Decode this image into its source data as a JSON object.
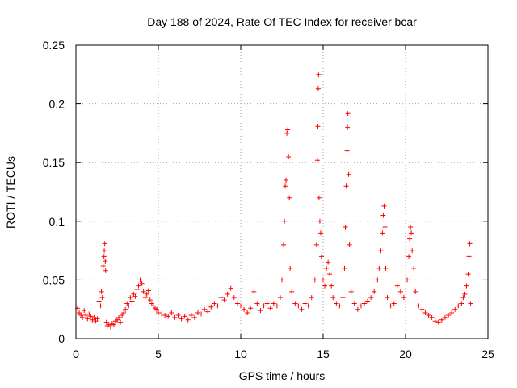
{
  "chart_data": {
    "type": "scatter",
    "title": "Day 188 of 2024, Rate Of TEC Index for receiver bcar",
    "xlabel": "GPS time / hours",
    "ylabel": "ROTI / TECUs",
    "xlim": [
      0,
      25
    ],
    "ylim": [
      0,
      0.25
    ],
    "x_ticks": [
      0,
      5,
      10,
      15,
      20,
      25
    ],
    "x_tick_labels": [
      "0",
      "5",
      "10",
      "15",
      "20",
      "25"
    ],
    "y_ticks": [
      0,
      0.05,
      0.1,
      0.15,
      0.2,
      0.25
    ],
    "y_tick_labels": [
      "0",
      "0.05",
      "0.1",
      "0.15",
      "0.2",
      "0.25"
    ],
    "grid": true,
    "marker": "+",
    "color": "#ff0000",
    "series": [
      {
        "name": "ROTI",
        "points": [
          [
            0.0,
            0.028
          ],
          [
            0.1,
            0.026
          ],
          [
            0.2,
            0.022
          ],
          [
            0.3,
            0.02
          ],
          [
            0.4,
            0.018
          ],
          [
            0.5,
            0.024
          ],
          [
            0.6,
            0.02
          ],
          [
            0.7,
            0.017
          ],
          [
            0.8,
            0.021
          ],
          [
            0.9,
            0.019
          ],
          [
            1.0,
            0.016
          ],
          [
            1.1,
            0.018
          ],
          [
            1.2,
            0.015
          ],
          [
            1.3,
            0.017
          ],
          [
            1.4,
            0.032
          ],
          [
            1.5,
            0.028
          ],
          [
            1.55,
            0.04
          ],
          [
            1.6,
            0.035
          ],
          [
            1.65,
            0.062
          ],
          [
            1.7,
            0.07
          ],
          [
            1.72,
            0.075
          ],
          [
            1.75,
            0.081
          ],
          [
            1.78,
            0.066
          ],
          [
            1.8,
            0.058
          ],
          [
            1.85,
            0.014
          ],
          [
            1.9,
            0.011
          ],
          [
            2.0,
            0.012
          ],
          [
            2.1,
            0.01
          ],
          [
            2.2,
            0.013
          ],
          [
            2.3,
            0.012
          ],
          [
            2.4,
            0.015
          ],
          [
            2.5,
            0.016
          ],
          [
            2.6,
            0.018
          ],
          [
            2.7,
            0.014
          ],
          [
            2.8,
            0.02
          ],
          [
            2.9,
            0.022
          ],
          [
            3.0,
            0.025
          ],
          [
            3.1,
            0.03
          ],
          [
            3.2,
            0.028
          ],
          [
            3.3,
            0.035
          ],
          [
            3.4,
            0.032
          ],
          [
            3.5,
            0.038
          ],
          [
            3.6,
            0.036
          ],
          [
            3.7,
            0.042
          ],
          [
            3.8,
            0.045
          ],
          [
            3.9,
            0.05
          ],
          [
            4.0,
            0.047
          ],
          [
            4.1,
            0.04
          ],
          [
            4.2,
            0.035
          ],
          [
            4.3,
            0.038
          ],
          [
            4.4,
            0.041
          ],
          [
            4.5,
            0.033
          ],
          [
            4.6,
            0.03
          ],
          [
            4.7,
            0.028
          ],
          [
            4.8,
            0.026
          ],
          [
            4.9,
            0.025
          ],
          [
            5.0,
            0.022
          ],
          [
            5.2,
            0.021
          ],
          [
            5.4,
            0.02
          ],
          [
            5.6,
            0.019
          ],
          [
            5.8,
            0.022
          ],
          [
            6.0,
            0.018
          ],
          [
            6.2,
            0.02
          ],
          [
            6.4,
            0.017
          ],
          [
            6.6,
            0.019
          ],
          [
            6.8,
            0.016
          ],
          [
            7.0,
            0.02
          ],
          [
            7.2,
            0.018
          ],
          [
            7.4,
            0.022
          ],
          [
            7.6,
            0.021
          ],
          [
            7.8,
            0.025
          ],
          [
            8.0,
            0.023
          ],
          [
            8.2,
            0.027
          ],
          [
            8.4,
            0.03
          ],
          [
            8.6,
            0.028
          ],
          [
            8.8,
            0.035
          ],
          [
            9.0,
            0.033
          ],
          [
            9.2,
            0.038
          ],
          [
            9.4,
            0.043
          ],
          [
            9.6,
            0.035
          ],
          [
            9.8,
            0.03
          ],
          [
            10.0,
            0.028
          ],
          [
            10.2,
            0.025
          ],
          [
            10.4,
            0.022
          ],
          [
            10.6,
            0.026
          ],
          [
            10.8,
            0.04
          ],
          [
            11.0,
            0.03
          ],
          [
            11.2,
            0.024
          ],
          [
            11.4,
            0.028
          ],
          [
            11.6,
            0.03
          ],
          [
            11.8,
            0.026
          ],
          [
            12.0,
            0.03
          ],
          [
            12.2,
            0.028
          ],
          [
            12.4,
            0.035
          ],
          [
            12.5,
            0.05
          ],
          [
            12.6,
            0.08
          ],
          [
            12.65,
            0.1
          ],
          [
            12.7,
            0.13
          ],
          [
            12.75,
            0.135
          ],
          [
            12.8,
            0.175
          ],
          [
            12.85,
            0.178
          ],
          [
            12.9,
            0.155
          ],
          [
            12.95,
            0.12
          ],
          [
            13.0,
            0.06
          ],
          [
            13.1,
            0.04
          ],
          [
            13.3,
            0.03
          ],
          [
            13.5,
            0.028
          ],
          [
            13.7,
            0.025
          ],
          [
            13.9,
            0.03
          ],
          [
            14.1,
            0.028
          ],
          [
            14.3,
            0.035
          ],
          [
            14.5,
            0.05
          ],
          [
            14.6,
            0.08
          ],
          [
            14.65,
            0.152
          ],
          [
            14.68,
            0.181
          ],
          [
            14.7,
            0.213
          ],
          [
            14.72,
            0.225
          ],
          [
            14.75,
            0.12
          ],
          [
            14.8,
            0.1
          ],
          [
            14.85,
            0.09
          ],
          [
            14.9,
            0.07
          ],
          [
            15.0,
            0.05
          ],
          [
            15.1,
            0.045
          ],
          [
            15.2,
            0.06
          ],
          [
            15.3,
            0.065
          ],
          [
            15.4,
            0.055
          ],
          [
            15.5,
            0.045
          ],
          [
            15.6,
            0.035
          ],
          [
            15.8,
            0.03
          ],
          [
            16.0,
            0.028
          ],
          [
            16.2,
            0.035
          ],
          [
            16.3,
            0.06
          ],
          [
            16.35,
            0.095
          ],
          [
            16.4,
            0.13
          ],
          [
            16.45,
            0.16
          ],
          [
            16.48,
            0.18
          ],
          [
            16.5,
            0.192
          ],
          [
            16.55,
            0.14
          ],
          [
            16.6,
            0.08
          ],
          [
            16.7,
            0.04
          ],
          [
            16.9,
            0.03
          ],
          [
            17.1,
            0.025
          ],
          [
            17.3,
            0.028
          ],
          [
            17.5,
            0.03
          ],
          [
            17.7,
            0.032
          ],
          [
            17.9,
            0.035
          ],
          [
            18.1,
            0.04
          ],
          [
            18.3,
            0.05
          ],
          [
            18.4,
            0.06
          ],
          [
            18.5,
            0.075
          ],
          [
            18.6,
            0.09
          ],
          [
            18.65,
            0.105
          ],
          [
            18.7,
            0.113
          ],
          [
            18.75,
            0.095
          ],
          [
            18.8,
            0.06
          ],
          [
            18.9,
            0.035
          ],
          [
            19.1,
            0.028
          ],
          [
            19.3,
            0.03
          ],
          [
            19.5,
            0.045
          ],
          [
            19.7,
            0.04
          ],
          [
            19.9,
            0.035
          ],
          [
            20.1,
            0.05
          ],
          [
            20.2,
            0.07
          ],
          [
            20.25,
            0.085
          ],
          [
            20.3,
            0.095
          ],
          [
            20.35,
            0.09
          ],
          [
            20.4,
            0.075
          ],
          [
            20.5,
            0.06
          ],
          [
            20.6,
            0.04
          ],
          [
            20.8,
            0.028
          ],
          [
            21.0,
            0.025
          ],
          [
            21.2,
            0.022
          ],
          [
            21.4,
            0.02
          ],
          [
            21.6,
            0.018
          ],
          [
            21.8,
            0.015
          ],
          [
            22.0,
            0.014
          ],
          [
            22.2,
            0.016
          ],
          [
            22.4,
            0.018
          ],
          [
            22.6,
            0.02
          ],
          [
            22.8,
            0.022
          ],
          [
            23.0,
            0.025
          ],
          [
            23.2,
            0.028
          ],
          [
            23.4,
            0.03
          ],
          [
            23.5,
            0.035
          ],
          [
            23.6,
            0.038
          ],
          [
            23.7,
            0.045
          ],
          [
            23.8,
            0.055
          ],
          [
            23.85,
            0.07
          ],
          [
            23.9,
            0.081
          ],
          [
            23.95,
            0.03
          ]
        ]
      }
    ]
  }
}
